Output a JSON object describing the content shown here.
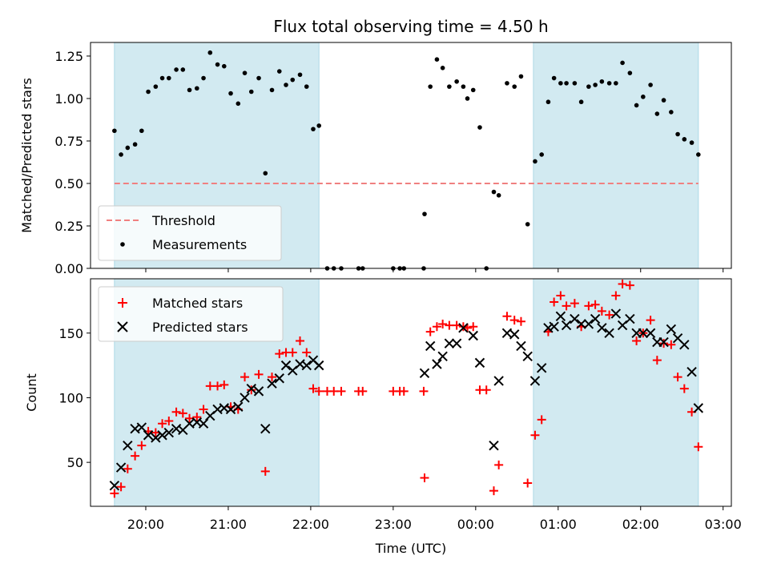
{
  "chart_data": {
    "type": "scatter",
    "title": "Flux total observing time = 4.50 h",
    "xlabel": "Time (UTC)",
    "x_tick_labels": [
      "20:00",
      "21:00",
      "22:00",
      "23:00",
      "00:00",
      "01:00",
      "02:00",
      "03:00"
    ],
    "x_range_hours": [
      19.33,
      27.1
    ],
    "shaded_intervals_hours": [
      [
        19.62,
        22.1
      ],
      [
        24.7,
        26.7
      ]
    ],
    "colors": {
      "shade": "#add8e6",
      "threshold": "#f08080",
      "measurements": "#000000",
      "matched": "#ff0000",
      "predicted": "#000000"
    },
    "panels": [
      {
        "id": "ratio",
        "ylabel": "Matched/Predicted stars",
        "ylim": [
          0,
          1.33
        ],
        "y_ticks": [
          "0.00",
          "0.25",
          "0.50",
          "0.75",
          "1.00",
          "1.25"
        ],
        "legend_position": "lower-left",
        "threshold": {
          "name": "Threshold",
          "value": 0.5
        },
        "series": [
          {
            "name": "Measurements",
            "marker": "dot",
            "points": [
              [
                19.62,
                0.81
              ],
              [
                19.7,
                0.67
              ],
              [
                19.78,
                0.71
              ],
              [
                19.87,
                0.73
              ],
              [
                19.95,
                0.81
              ],
              [
                20.03,
                1.04
              ],
              [
                20.12,
                1.07
              ],
              [
                20.2,
                1.12
              ],
              [
                20.28,
                1.12
              ],
              [
                20.37,
                1.17
              ],
              [
                20.45,
                1.17
              ],
              [
                20.53,
                1.05
              ],
              [
                20.62,
                1.06
              ],
              [
                20.7,
                1.12
              ],
              [
                20.78,
                1.27
              ],
              [
                20.87,
                1.2
              ],
              [
                20.95,
                1.19
              ],
              [
                21.03,
                1.03
              ],
              [
                21.12,
                0.97
              ],
              [
                21.2,
                1.15
              ],
              [
                21.28,
                1.04
              ],
              [
                21.37,
                1.12
              ],
              [
                21.45,
                0.56
              ],
              [
                21.53,
                1.05
              ],
              [
                21.62,
                1.16
              ],
              [
                21.7,
                1.08
              ],
              [
                21.78,
                1.11
              ],
              [
                21.87,
                1.14
              ],
              [
                21.95,
                1.07
              ],
              [
                22.03,
                0.82
              ],
              [
                22.1,
                0.84
              ],
              [
                22.2,
                0.0
              ],
              [
                22.28,
                0.0
              ],
              [
                22.37,
                0.0
              ],
              [
                22.58,
                0.0
              ],
              [
                22.63,
                0.0
              ],
              [
                23.0,
                0.0
              ],
              [
                23.08,
                0.0
              ],
              [
                23.13,
                0.0
              ],
              [
                23.37,
                0.0
              ],
              [
                23.38,
                0.32
              ],
              [
                23.45,
                1.07
              ],
              [
                23.53,
                1.23
              ],
              [
                23.6,
                1.18
              ],
              [
                23.68,
                1.07
              ],
              [
                23.77,
                1.1
              ],
              [
                23.85,
                1.07
              ],
              [
                23.9,
                1.0
              ],
              [
                23.97,
                1.05
              ],
              [
                24.05,
                0.83
              ],
              [
                24.13,
                0.0
              ],
              [
                24.22,
                0.45
              ],
              [
                24.28,
                0.43
              ],
              [
                24.38,
                1.09
              ],
              [
                24.47,
                1.07
              ],
              [
                24.55,
                1.13
              ],
              [
                24.63,
                0.26
              ],
              [
                24.72,
                0.63
              ],
              [
                24.8,
                0.67
              ],
              [
                24.88,
                0.98
              ],
              [
                24.95,
                1.12
              ],
              [
                25.03,
                1.09
              ],
              [
                25.1,
                1.09
              ],
              [
                25.2,
                1.09
              ],
              [
                25.28,
                0.98
              ],
              [
                25.37,
                1.07
              ],
              [
                25.45,
                1.08
              ],
              [
                25.53,
                1.1
              ],
              [
                25.62,
                1.09
              ],
              [
                25.7,
                1.09
              ],
              [
                25.78,
                1.21
              ],
              [
                25.87,
                1.15
              ],
              [
                25.95,
                0.96
              ],
              [
                26.03,
                1.01
              ],
              [
                26.12,
                1.08
              ],
              [
                26.2,
                0.91
              ],
              [
                26.28,
                0.99
              ],
              [
                26.37,
                0.92
              ],
              [
                26.45,
                0.79
              ],
              [
                26.53,
                0.76
              ],
              [
                26.62,
                0.74
              ],
              [
                26.7,
                0.67
              ]
            ]
          }
        ]
      },
      {
        "id": "count",
        "ylabel": "Count",
        "ylim": [
          16,
          192
        ],
        "y_ticks": [
          "50",
          "100",
          "150"
        ],
        "legend_position": "top-left",
        "series": [
          {
            "name": "Matched stars",
            "marker": "plus",
            "points": [
              [
                19.62,
                26
              ],
              [
                19.7,
                31
              ],
              [
                19.78,
                45
              ],
              [
                19.87,
                55
              ],
              [
                19.95,
                63
              ],
              [
                20.03,
                74
              ],
              [
                20.12,
                73
              ],
              [
                20.2,
                80
              ],
              [
                20.28,
                82
              ],
              [
                20.37,
                89
              ],
              [
                20.45,
                88
              ],
              [
                20.53,
                84
              ],
              [
                20.62,
                85
              ],
              [
                20.7,
                91
              ],
              [
                20.78,
                109
              ],
              [
                20.87,
                109
              ],
              [
                20.95,
                110
              ],
              [
                21.03,
                93
              ],
              [
                21.12,
                91
              ],
              [
                21.2,
                116
              ],
              [
                21.28,
                106
              ],
              [
                21.37,
                118
              ],
              [
                21.45,
                43
              ],
              [
                21.53,
                116
              ],
              [
                21.62,
                134
              ],
              [
                21.7,
                135
              ],
              [
                21.78,
                135
              ],
              [
                21.87,
                144
              ],
              [
                21.95,
                135
              ],
              [
                22.03,
                107
              ],
              [
                22.1,
                105
              ],
              [
                22.2,
                105
              ],
              [
                22.28,
                105
              ],
              [
                22.37,
                105
              ],
              [
                22.58,
                105
              ],
              [
                22.63,
                105
              ],
              [
                23.0,
                105
              ],
              [
                23.08,
                105
              ],
              [
                23.13,
                105
              ],
              [
                23.37,
                105
              ],
              [
                23.38,
                38
              ],
              [
                23.45,
                151
              ],
              [
                23.53,
                155
              ],
              [
                23.6,
                157
              ],
              [
                23.68,
                156
              ],
              [
                23.77,
                156
              ],
              [
                23.85,
                155
              ],
              [
                23.9,
                154
              ],
              [
                23.97,
                155
              ],
              [
                24.05,
                106
              ],
              [
                24.13,
                106
              ],
              [
                24.22,
                28
              ],
              [
                24.28,
                48
              ],
              [
                24.38,
                163
              ],
              [
                24.47,
                160
              ],
              [
                24.55,
                159
              ],
              [
                24.63,
                34
              ],
              [
                24.72,
                71
              ],
              [
                24.8,
                83
              ],
              [
                24.88,
                151
              ],
              [
                24.95,
                174
              ],
              [
                25.03,
                179
              ],
              [
                25.1,
                171
              ],
              [
                25.2,
                173
              ],
              [
                25.28,
                155
              ],
              [
                25.37,
                171
              ],
              [
                25.45,
                172
              ],
              [
                25.53,
                167
              ],
              [
                25.62,
                164
              ],
              [
                25.7,
                179
              ],
              [
                25.78,
                188
              ],
              [
                25.87,
                187
              ],
              [
                25.95,
                144
              ],
              [
                26.03,
                150
              ],
              [
                26.12,
                160
              ],
              [
                26.2,
                129
              ],
              [
                26.28,
                142
              ],
              [
                26.37,
                141
              ],
              [
                26.45,
                116
              ],
              [
                26.53,
                107
              ],
              [
                26.62,
                89
              ],
              [
                26.7,
                62
              ]
            ]
          },
          {
            "name": "Predicted stars",
            "marker": "x",
            "points": [
              [
                19.62,
                32
              ],
              [
                19.7,
                46
              ],
              [
                19.78,
                63
              ],
              [
                19.87,
                76
              ],
              [
                19.95,
                77
              ],
              [
                20.03,
                71
              ],
              [
                20.12,
                69
              ],
              [
                20.2,
                71
              ],
              [
                20.28,
                73
              ],
              [
                20.37,
                76
              ],
              [
                20.45,
                75
              ],
              [
                20.53,
                80
              ],
              [
                20.62,
                81
              ],
              [
                20.7,
                80
              ],
              [
                20.78,
                86
              ],
              [
                20.87,
                91
              ],
              [
                20.95,
                92
              ],
              [
                21.03,
                91
              ],
              [
                21.12,
                93
              ],
              [
                21.2,
                100
              ],
              [
                21.28,
                107
              ],
              [
                21.37,
                105
              ],
              [
                21.45,
                76
              ],
              [
                21.53,
                111
              ],
              [
                21.62,
                115
              ],
              [
                21.7,
                125
              ],
              [
                21.78,
                121
              ],
              [
                21.87,
                126
              ],
              [
                21.95,
                125
              ],
              [
                22.03,
                129
              ],
              [
                22.1,
                125
              ],
              [
                23.38,
                119
              ],
              [
                23.45,
                140
              ],
              [
                23.53,
                126
              ],
              [
                23.6,
                132
              ],
              [
                23.68,
                142
              ],
              [
                23.77,
                142
              ],
              [
                23.85,
                154
              ],
              [
                23.97,
                148
              ],
              [
                24.05,
                127
              ],
              [
                24.22,
                63
              ],
              [
                24.28,
                113
              ],
              [
                24.38,
                150
              ],
              [
                24.47,
                149
              ],
              [
                24.55,
                140
              ],
              [
                24.63,
                132
              ],
              [
                24.72,
                113
              ],
              [
                24.8,
                123
              ],
              [
                24.88,
                154
              ],
              [
                24.95,
                155
              ],
              [
                25.03,
                163
              ],
              [
                25.1,
                156
              ],
              [
                25.2,
                161
              ],
              [
                25.28,
                157
              ],
              [
                25.37,
                157
              ],
              [
                25.45,
                161
              ],
              [
                25.53,
                154
              ],
              [
                25.62,
                150
              ],
              [
                25.7,
                165
              ],
              [
                25.78,
                156
              ],
              [
                25.87,
                161
              ],
              [
                25.95,
                150
              ],
              [
                26.03,
                150
              ],
              [
                26.12,
                150
              ],
              [
                26.2,
                143
              ],
              [
                26.28,
                143
              ],
              [
                26.37,
                153
              ],
              [
                26.45,
                146
              ],
              [
                26.53,
                141
              ],
              [
                26.62,
                120
              ],
              [
                26.7,
                92
              ]
            ]
          }
        ]
      }
    ]
  }
}
